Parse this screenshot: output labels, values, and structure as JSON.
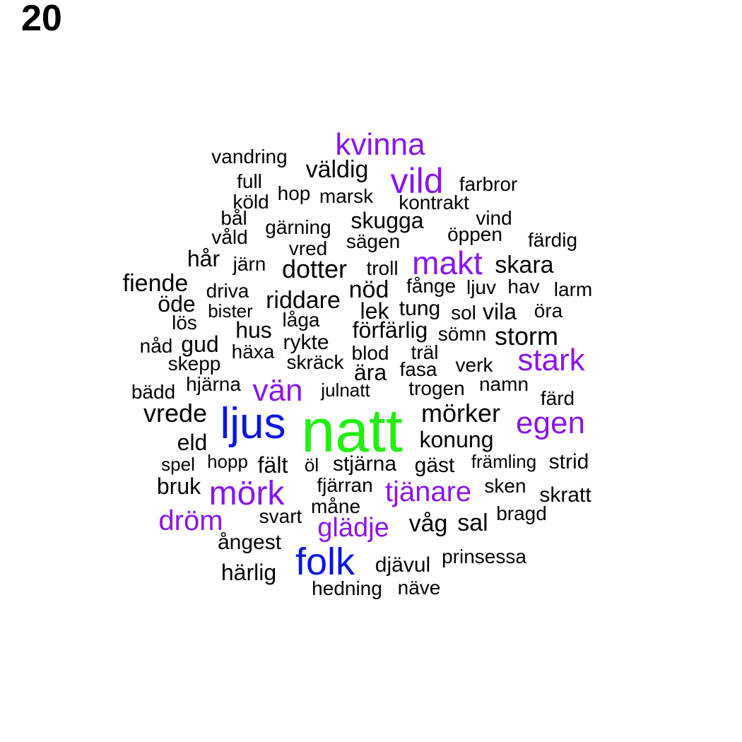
{
  "panel_number": "20",
  "colors": {
    "level1": "#000000",
    "level2": "#8a14f0",
    "level3": "#0a14e6",
    "level4": "#22ee11"
  },
  "words": [
    {
      "text": "natt",
      "level": 4
    },
    {
      "text": "ljus",
      "level": 3
    },
    {
      "text": "folk",
      "level": 3
    },
    {
      "text": "kvinna",
      "level": 2
    },
    {
      "text": "vild",
      "level": 2
    },
    {
      "text": "makt",
      "level": 2
    },
    {
      "text": "stark",
      "level": 2
    },
    {
      "text": "vän",
      "level": 2
    },
    {
      "text": "egen",
      "level": 2
    },
    {
      "text": "mörk",
      "level": 2
    },
    {
      "text": "tjänare",
      "level": 2
    },
    {
      "text": "dröm",
      "level": 2
    },
    {
      "text": "glädje",
      "level": 2
    },
    {
      "text": "vandring",
      "level": 1
    },
    {
      "text": "väldig",
      "level": 1
    },
    {
      "text": "full",
      "level": 1
    },
    {
      "text": "farbror",
      "level": 1
    },
    {
      "text": "hop",
      "level": 1
    },
    {
      "text": "marsk",
      "level": 1
    },
    {
      "text": "köld",
      "level": 1
    },
    {
      "text": "kontrakt",
      "level": 1
    },
    {
      "text": "bål",
      "level": 1
    },
    {
      "text": "skugga",
      "level": 1
    },
    {
      "text": "vind",
      "level": 1
    },
    {
      "text": "gärning",
      "level": 1
    },
    {
      "text": "våld",
      "level": 1
    },
    {
      "text": "öppen",
      "level": 1
    },
    {
      "text": "färdig",
      "level": 1
    },
    {
      "text": "sägen",
      "level": 1
    },
    {
      "text": "vred",
      "level": 1
    },
    {
      "text": "hår",
      "level": 1
    },
    {
      "text": "järn",
      "level": 1
    },
    {
      "text": "dotter",
      "level": 1
    },
    {
      "text": "troll",
      "level": 1
    },
    {
      "text": "skara",
      "level": 1
    },
    {
      "text": "fiende",
      "level": 1
    },
    {
      "text": "fånge",
      "level": 1
    },
    {
      "text": "ljuv",
      "level": 1
    },
    {
      "text": "hav",
      "level": 1
    },
    {
      "text": "larm",
      "level": 1
    },
    {
      "text": "driva",
      "level": 1
    },
    {
      "text": "nöd",
      "level": 1
    },
    {
      "text": "öde",
      "level": 1
    },
    {
      "text": "riddare",
      "level": 1
    },
    {
      "text": "tung",
      "level": 1
    },
    {
      "text": "lek",
      "level": 1
    },
    {
      "text": "sol",
      "level": 1
    },
    {
      "text": "vila",
      "level": 1
    },
    {
      "text": "öra",
      "level": 1
    },
    {
      "text": "bister",
      "level": 1
    },
    {
      "text": "låga",
      "level": 1
    },
    {
      "text": "lös",
      "level": 1
    },
    {
      "text": "hus",
      "level": 1
    },
    {
      "text": "förfärlig",
      "level": 1
    },
    {
      "text": "sömn",
      "level": 1
    },
    {
      "text": "storm",
      "level": 1
    },
    {
      "text": "nåd",
      "level": 1
    },
    {
      "text": "gud",
      "level": 1
    },
    {
      "text": "rykte",
      "level": 1
    },
    {
      "text": "häxa",
      "level": 1
    },
    {
      "text": "blod",
      "level": 1
    },
    {
      "text": "träl",
      "level": 1
    },
    {
      "text": "skepp",
      "level": 1
    },
    {
      "text": "skräck",
      "level": 1
    },
    {
      "text": "ära",
      "level": 1
    },
    {
      "text": "fasa",
      "level": 1
    },
    {
      "text": "verk",
      "level": 1
    },
    {
      "text": "hjärna",
      "level": 1
    },
    {
      "text": "bädd",
      "level": 1
    },
    {
      "text": "julnatt",
      "level": 1
    },
    {
      "text": "trogen",
      "level": 1
    },
    {
      "text": "namn",
      "level": 1
    },
    {
      "text": "färd",
      "level": 1
    },
    {
      "text": "vrede",
      "level": 1
    },
    {
      "text": "mörker",
      "level": 1
    },
    {
      "text": "eld",
      "level": 1
    },
    {
      "text": "konung",
      "level": 1
    },
    {
      "text": "spel",
      "level": 1
    },
    {
      "text": "hopp",
      "level": 1
    },
    {
      "text": "fält",
      "level": 1
    },
    {
      "text": "öl",
      "level": 1
    },
    {
      "text": "stjärna",
      "level": 1
    },
    {
      "text": "gäst",
      "level": 1
    },
    {
      "text": "främling",
      "level": 1
    },
    {
      "text": "strid",
      "level": 1
    },
    {
      "text": "bruk",
      "level": 1
    },
    {
      "text": "fjärran",
      "level": 1
    },
    {
      "text": "sken",
      "level": 1
    },
    {
      "text": "skratt",
      "level": 1
    },
    {
      "text": "måne",
      "level": 1
    },
    {
      "text": "svart",
      "level": 1
    },
    {
      "text": "bragd",
      "level": 1
    },
    {
      "text": "våg",
      "level": 1
    },
    {
      "text": "sal",
      "level": 1
    },
    {
      "text": "ångest",
      "level": 1
    },
    {
      "text": "prinsessa",
      "level": 1
    },
    {
      "text": "djävul",
      "level": 1
    },
    {
      "text": "härlig",
      "level": 1
    },
    {
      "text": "hedning",
      "level": 1
    },
    {
      "text": "näve",
      "level": 1
    }
  ]
}
